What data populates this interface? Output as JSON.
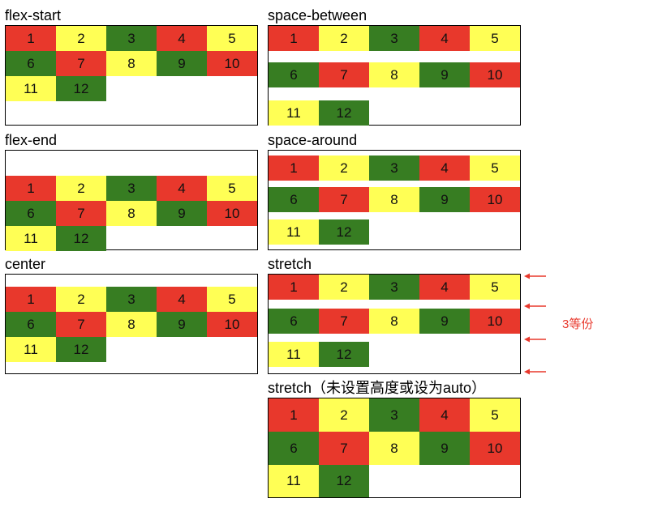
{
  "colors": {
    "red": "#e8382c",
    "yellow": "#ffff55",
    "green": "#377d22",
    "annotation": "#e8382c"
  },
  "items": [
    {
      "label": "1",
      "color": "red"
    },
    {
      "label": "2",
      "color": "yellow"
    },
    {
      "label": "3",
      "color": "green"
    },
    {
      "label": "4",
      "color": "red"
    },
    {
      "label": "5",
      "color": "yellow"
    },
    {
      "label": "6",
      "color": "green"
    },
    {
      "label": "7",
      "color": "red"
    },
    {
      "label": "8",
      "color": "yellow"
    },
    {
      "label": "9",
      "color": "green"
    },
    {
      "label": "10",
      "color": "red"
    },
    {
      "label": "11",
      "color": "yellow"
    },
    {
      "label": "12",
      "color": "green"
    }
  ],
  "panels": [
    {
      "id": "flex-start",
      "title": "flex-start"
    },
    {
      "id": "flex-end",
      "title": "flex-end"
    },
    {
      "id": "center",
      "title": "center"
    },
    {
      "id": "space-between",
      "title": "space-between"
    },
    {
      "id": "space-around",
      "title": "space-around"
    },
    {
      "id": "stretch",
      "title": "stretch"
    },
    {
      "id": "stretch-auto",
      "title": "stretch（未设置高度或设为auto）"
    }
  ],
  "annotation": {
    "text": "3等份",
    "arrow_count": 4
  }
}
